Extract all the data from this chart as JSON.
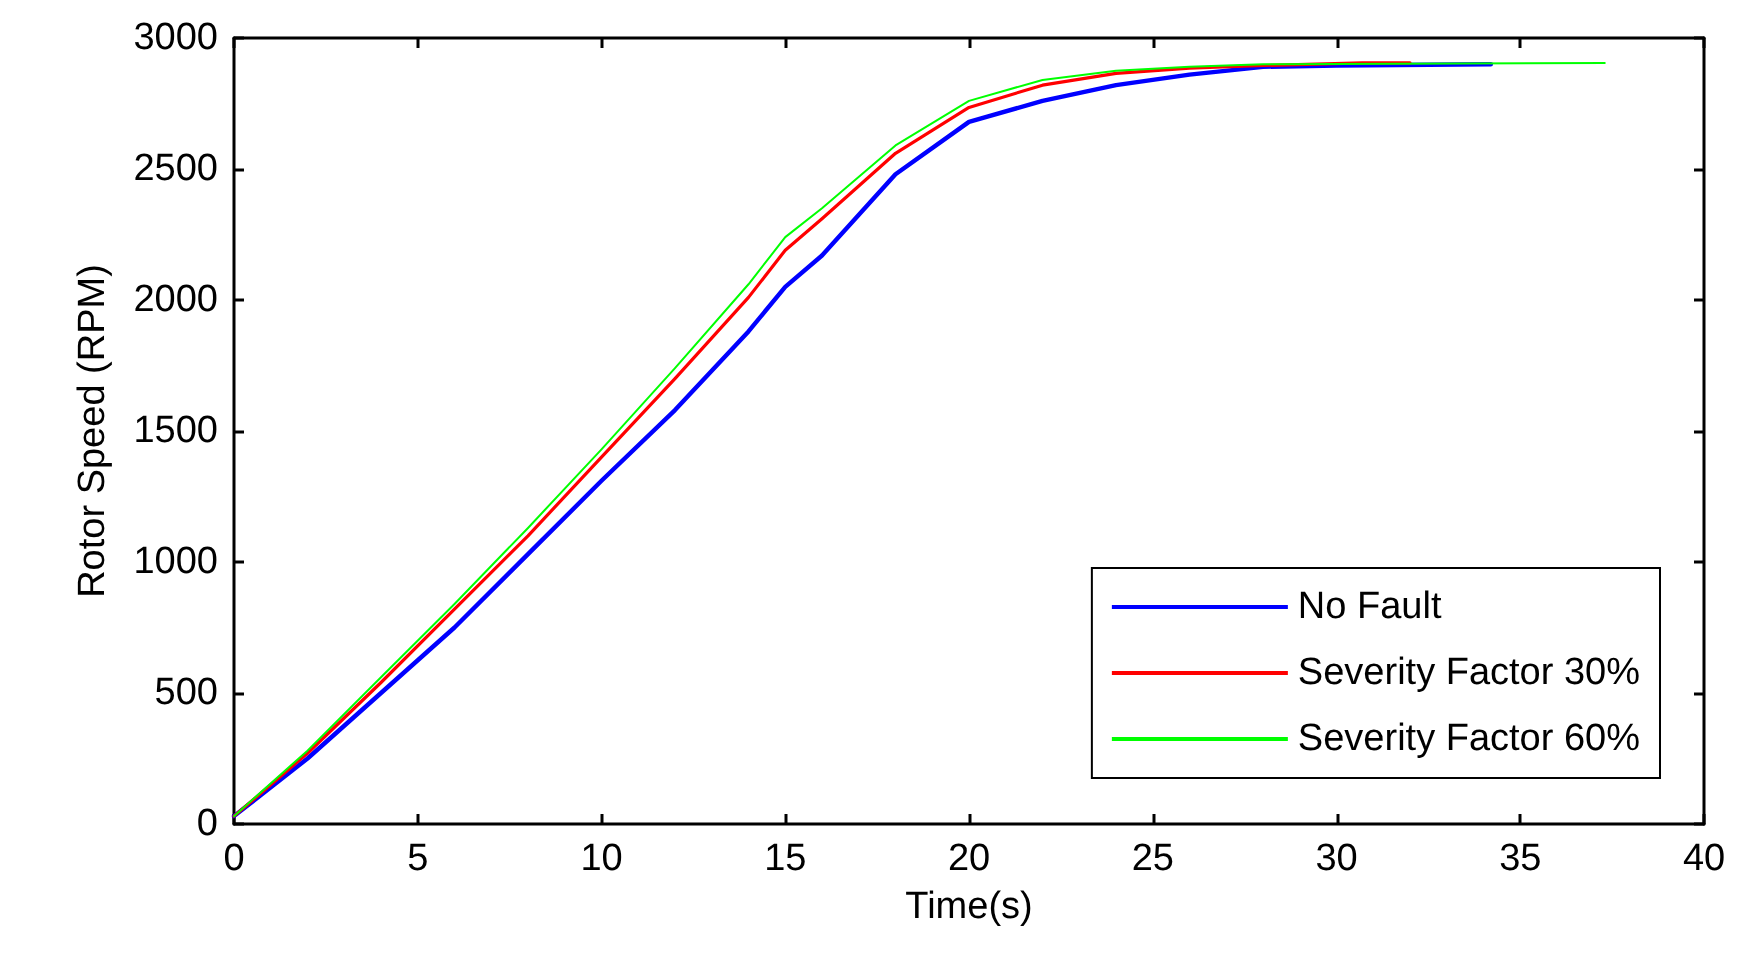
{
  "chart_data": {
    "type": "line",
    "xlabel": "Time(s)",
    "ylabel": "Rotor Speed (RPM)",
    "xlim": [
      0,
      40
    ],
    "xticks": [
      0,
      5,
      10,
      15,
      20,
      25,
      30,
      35,
      40
    ],
    "ylim": [
      0,
      3000
    ],
    "yticks": [
      0,
      500,
      1000,
      1500,
      2000,
      2500,
      3000
    ],
    "grid": false,
    "legend": "bottom right",
    "marker": "none",
    "line_style": "solid",
    "series": [
      {
        "name": "No Fault",
        "color": "#0000ff",
        "x": [
          0,
          2,
          4,
          6,
          8,
          10,
          12,
          14,
          15,
          16,
          18,
          20,
          22,
          24,
          26,
          28,
          30,
          34.2
        ],
        "values": [
          30,
          250,
          500,
          750,
          1030,
          1310,
          1580,
          1880,
          2050,
          2170,
          2480,
          2680,
          2760,
          2820,
          2860,
          2890,
          2895,
          2900
        ]
      },
      {
        "name": "Severity Factor 30%",
        "color": "#ff0000",
        "x": [
          0,
          2,
          4,
          6,
          8,
          10,
          12,
          14,
          15,
          16,
          18,
          20,
          22,
          24,
          26,
          28,
          30.7,
          32
        ],
        "values": [
          30,
          270,
          540,
          820,
          1100,
          1400,
          1700,
          2010,
          2190,
          2310,
          2560,
          2735,
          2820,
          2865,
          2885,
          2895,
          2905,
          2905
        ]
      },
      {
        "name": "Severity Factor 60%",
        "color": "#00ff00",
        "x": [
          0,
          2,
          4,
          6,
          8,
          10,
          12,
          14,
          15,
          16,
          18,
          20,
          22,
          24,
          26,
          28,
          37.3
        ],
        "values": [
          30,
          280,
          560,
          840,
          1130,
          1430,
          1740,
          2060,
          2240,
          2350,
          2590,
          2760,
          2840,
          2875,
          2890,
          2900,
          2905
        ]
      }
    ]
  }
}
